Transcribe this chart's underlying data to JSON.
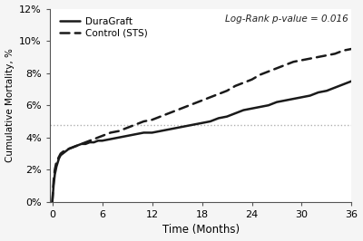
{
  "title": "",
  "xlabel": "Time (Months)",
  "ylabel": "Cumulative Mortality, %",
  "log_rank_text": "Log-Rank p-value = 0.016",
  "xlim": [
    -0.3,
    36
  ],
  "ylim": [
    0,
    0.12
  ],
  "yticks": [
    0,
    0.02,
    0.04,
    0.06,
    0.08,
    0.1,
    0.12
  ],
  "xticks": [
    0,
    6,
    12,
    18,
    24,
    30,
    36
  ],
  "hline_y": 0.048,
  "hline_color": "#b0b0b0",
  "duragraft_color": "#1a1a1a",
  "sts_color": "#1a1a1a",
  "background_color": "#f5f5f5",
  "plot_bg": "#ffffff",
  "duragraft_x": [
    0,
    0.15,
    0.3,
    0.5,
    0.8,
    1.0,
    1.5,
    2.0,
    2.5,
    3.0,
    3.5,
    4.0,
    4.5,
    5.0,
    5.5,
    6.0,
    7.0,
    8.0,
    9.0,
    10.0,
    11.0,
    12.0,
    13.0,
    14.0,
    15.0,
    16.0,
    17.0,
    18.0,
    19.0,
    20.0,
    21.0,
    22.0,
    23.0,
    24.0,
    25.0,
    26.0,
    27.0,
    28.0,
    29.0,
    30.0,
    31.0,
    32.0,
    33.0,
    34.0,
    35.0,
    36.0
  ],
  "duragraft_y": [
    0,
    0.01,
    0.017,
    0.022,
    0.027,
    0.029,
    0.031,
    0.033,
    0.034,
    0.035,
    0.036,
    0.036,
    0.037,
    0.037,
    0.038,
    0.038,
    0.039,
    0.04,
    0.041,
    0.042,
    0.043,
    0.043,
    0.044,
    0.045,
    0.046,
    0.047,
    0.048,
    0.049,
    0.05,
    0.052,
    0.053,
    0.055,
    0.057,
    0.058,
    0.059,
    0.06,
    0.062,
    0.063,
    0.064,
    0.065,
    0.066,
    0.068,
    0.069,
    0.071,
    0.073,
    0.075
  ],
  "sts_x": [
    0,
    0.15,
    0.3,
    0.5,
    0.8,
    1.0,
    1.5,
    2.0,
    2.5,
    3.0,
    3.5,
    4.0,
    4.5,
    5.0,
    5.5,
    6.0,
    7.0,
    8.0,
    9.0,
    10.0,
    11.0,
    12.0,
    13.0,
    14.0,
    15.0,
    16.0,
    17.0,
    18.0,
    19.0,
    20.0,
    21.0,
    22.0,
    23.0,
    24.0,
    25.0,
    26.0,
    27.0,
    28.0,
    29.0,
    30.0,
    31.0,
    32.0,
    33.0,
    34.0,
    35.0,
    36.0
  ],
  "sts_y": [
    0,
    0.013,
    0.02,
    0.025,
    0.028,
    0.03,
    0.032,
    0.033,
    0.034,
    0.035,
    0.036,
    0.037,
    0.038,
    0.039,
    0.04,
    0.041,
    0.043,
    0.044,
    0.046,
    0.048,
    0.05,
    0.051,
    0.053,
    0.055,
    0.057,
    0.059,
    0.061,
    0.063,
    0.065,
    0.067,
    0.069,
    0.072,
    0.074,
    0.076,
    0.079,
    0.081,
    0.083,
    0.085,
    0.087,
    0.088,
    0.089,
    0.09,
    0.091,
    0.092,
    0.094,
    0.095
  ]
}
